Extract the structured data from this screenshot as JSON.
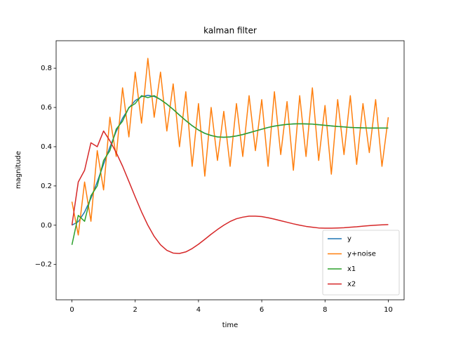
{
  "chart_data": {
    "type": "line",
    "title": "kalman filter",
    "x_label": "time",
    "y_label": "magnitude",
    "x": [
      0,
      0.2,
      0.4,
      0.6,
      0.8,
      1,
      1.2,
      1.4,
      1.6,
      1.8,
      2,
      2.2,
      2.4,
      2.6,
      2.8,
      3,
      3.2,
      3.4,
      3.6,
      3.8,
      4,
      4.2,
      4.4,
      4.6,
      4.8,
      5,
      5.2,
      5.4,
      5.6,
      5.8,
      6,
      6.2,
      6.4,
      6.6,
      6.8,
      7,
      7.2,
      7.4,
      7.6,
      7.8,
      8,
      8.2,
      8.4,
      8.6,
      8.8,
      9,
      9.2,
      9.4,
      9.6,
      9.8,
      10
    ],
    "series": [
      {
        "name": "y",
        "color": "#1f77b4",
        "values": [
          0,
          0.018,
          0.067,
          0.137,
          0.221,
          0.311,
          0.398,
          0.478,
          0.545,
          0.597,
          0.635,
          0.655,
          0.662,
          0.656,
          0.64,
          0.617,
          0.59,
          0.561,
          0.533,
          0.507,
          0.485,
          0.468,
          0.457,
          0.45,
          0.448,
          0.45,
          0.455,
          0.462,
          0.471,
          0.48,
          0.489,
          0.498,
          0.505,
          0.51,
          0.514,
          0.516,
          0.517,
          0.516,
          0.515,
          0.512,
          0.509,
          0.506,
          0.503,
          0.501,
          0.498,
          0.497,
          0.496,
          0.495,
          0.495,
          0.495,
          0.495
        ]
      },
      {
        "name": "y+noise",
        "color": "#ff7f0e",
        "values": [
          0.12,
          -0.05,
          0.22,
          0.02,
          0.38,
          0.18,
          0.55,
          0.35,
          0.7,
          0.45,
          0.78,
          0.52,
          0.85,
          0.55,
          0.78,
          0.48,
          0.72,
          0.4,
          0.68,
          0.3,
          0.62,
          0.25,
          0.6,
          0.33,
          0.58,
          0.3,
          0.62,
          0.35,
          0.66,
          0.38,
          0.64,
          0.3,
          0.68,
          0.36,
          0.63,
          0.28,
          0.66,
          0.35,
          0.7,
          0.33,
          0.61,
          0.26,
          0.64,
          0.36,
          0.66,
          0.31,
          0.62,
          0.37,
          0.64,
          0.3,
          0.55
        ]
      },
      {
        "name": "x1",
        "color": "#2ca02c",
        "values": [
          -0.1,
          0.05,
          0.02,
          0.15,
          0.2,
          0.33,
          0.38,
          0.49,
          0.53,
          0.6,
          0.62,
          0.66,
          0.65,
          0.66,
          0.64,
          0.617,
          0.59,
          0.561,
          0.533,
          0.507,
          0.485,
          0.468,
          0.457,
          0.45,
          0.448,
          0.45,
          0.455,
          0.462,
          0.471,
          0.48,
          0.489,
          0.498,
          0.505,
          0.51,
          0.514,
          0.516,
          0.517,
          0.516,
          0.515,
          0.512,
          0.509,
          0.506,
          0.503,
          0.501,
          0.498,
          0.497,
          0.496,
          0.495,
          0.495,
          0.495,
          0.495
        ]
      },
      {
        "name": "x2",
        "color": "#d62728",
        "values": [
          0,
          0.22,
          0.28,
          0.42,
          0.4,
          0.48,
          0.43,
          0.37,
          0.301,
          0.223,
          0.144,
          0.068,
          0,
          -0.057,
          -0.1,
          -0.128,
          -0.142,
          -0.144,
          -0.136,
          -0.119,
          -0.097,
          -0.072,
          -0.046,
          -0.022,
          0,
          0.019,
          0.033,
          0.041,
          0.046,
          0.046,
          0.044,
          0.038,
          0.031,
          0.023,
          0.015,
          0.007,
          0,
          -0.006,
          -0.01,
          -0.014,
          -0.015,
          -0.015,
          -0.014,
          -0.013,
          -0.01,
          -0.008,
          -0.005,
          -0.002,
          0,
          0.002,
          0.003
        ]
      }
    ],
    "xlim": [
      -0.5,
      10.5
    ],
    "ylim": [
      -0.38,
      0.94
    ],
    "xticks": [
      0,
      2,
      4,
      6,
      8,
      10
    ],
    "yticks": [
      {
        "value": -0.2,
        "label": "−0.2"
      },
      {
        "value": 0,
        "label": "0.0"
      },
      0.2,
      0.4,
      0.6,
      0.8
    ],
    "legend": "lower right",
    "grid": false
  }
}
